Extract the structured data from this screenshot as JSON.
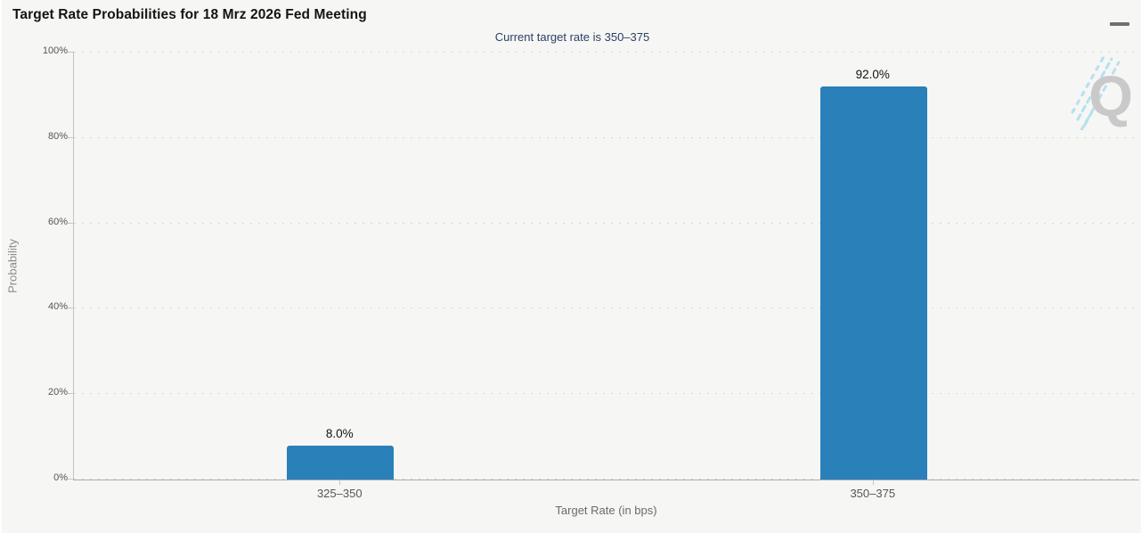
{
  "header": {
    "title": "Target Rate Probabilities for 18 Mrz 2026 Fed Meeting",
    "menu_icon": "hamburger-icon"
  },
  "subtitle": "Current target rate is 350–375",
  "watermark_letter": "Q",
  "colors": {
    "bar": "#2a80b9",
    "subtitle_text": "#2d3f61",
    "grid_dots": "#d7d7d5",
    "axis_line": "#ababab",
    "background": "#f6f6f5",
    "watermark_gray": "#c9c9c9",
    "watermark_blue": "#b6e0f0"
  },
  "chart_data": {
    "type": "bar",
    "title": "Target Rate Probabilities for 18 Mrz 2026 Fed Meeting",
    "subtitle": "Current target rate is 350–375",
    "categories": [
      "325–350",
      "350–375"
    ],
    "values": [
      8.0,
      92.0
    ],
    "value_labels": [
      "8.0%",
      "92.0%"
    ],
    "xlabel": "Target Rate (in bps)",
    "ylabel": "Probability",
    "ylim": [
      0,
      100
    ],
    "yticks": [
      0,
      20,
      40,
      60,
      80,
      100
    ],
    "ytick_labels": [
      "0%",
      "20%",
      "40%",
      "60%",
      "80%",
      "100%"
    ],
    "grid": "horizontal-dotted",
    "legend": "none",
    "bar_color": "#2a80b9"
  }
}
